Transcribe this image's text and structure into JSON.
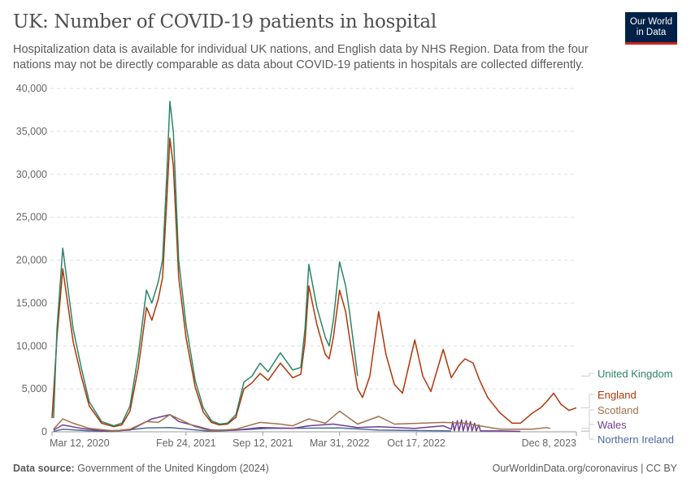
{
  "header": {
    "title": "UK: Number of COVID-19 patients in hospital",
    "subtitle": "Hospitalization data is available for individual UK nations, and English data by NHS Region. Data from the four nations may not be directly comparable as data about COVID-19 patients in hospitals are collected differently.",
    "logo": [
      "Our World",
      "in Data"
    ]
  },
  "footer": {
    "source_label": "Data source:",
    "source": " Government of the United Kingdom (2024)",
    "right": "OurWorldinData.org/coronavirus | CC BY"
  },
  "chart_data": {
    "type": "line",
    "title": "UK: Number of COVID-19 patients in hospital",
    "ylim": [
      0,
      40000
    ],
    "yticks": [
      "0",
      "5,000",
      "10,000",
      "15,000",
      "20,000",
      "25,000",
      "30,000",
      "35,000",
      "40,000"
    ],
    "ytick_values": [
      0,
      5000,
      10000,
      15000,
      20000,
      25000,
      30000,
      35000,
      40000
    ],
    "xlim": [
      "2020-03-12",
      "2023-12-08"
    ],
    "xticks": [
      {
        "date": "2020-03-12",
        "label": "Mar 12, 2020"
      },
      {
        "date": "2021-02-24",
        "label": "Feb 24, 2021"
      },
      {
        "date": "2021-09-12",
        "label": "Sep 12, 2021"
      },
      {
        "date": "2022-03-31",
        "label": "Mar 31, 2022"
      },
      {
        "date": "2022-10-17",
        "label": "Oct 17, 2022"
      },
      {
        "date": "2023-12-08",
        "label": "Dec 8, 2023"
      }
    ],
    "grid": true,
    "legend_placement": "right",
    "series": [
      {
        "name": "United Kingdom",
        "color": "#2c8465",
        "points": [
          [
            "2020-03-16",
            1600
          ],
          [
            "2020-03-25",
            12000
          ],
          [
            "2020-04-09",
            21400
          ],
          [
            "2020-05-06",
            12000
          ],
          [
            "2020-05-27",
            7500
          ],
          [
            "2020-06-17",
            3500
          ],
          [
            "2020-07-19",
            1200
          ],
          [
            "2020-08-20",
            700
          ],
          [
            "2020-09-10",
            1000
          ],
          [
            "2020-10-01",
            3000
          ],
          [
            "2020-10-23",
            9000
          ],
          [
            "2020-11-13",
            16500
          ],
          [
            "2020-11-27",
            15000
          ],
          [
            "2020-12-14",
            17500
          ],
          [
            "2020-12-25",
            20000
          ],
          [
            "2021-01-05",
            30000
          ],
          [
            "2021-01-13",
            38500
          ],
          [
            "2021-01-22",
            35000
          ],
          [
            "2021-02-05",
            20000
          ],
          [
            "2021-02-24",
            12500
          ],
          [
            "2021-03-20",
            6000
          ],
          [
            "2021-04-10",
            2800
          ],
          [
            "2021-05-01",
            1300
          ],
          [
            "2021-05-22",
            900
          ],
          [
            "2021-06-12",
            1000
          ],
          [
            "2021-07-04",
            2000
          ],
          [
            "2021-07-25",
            5800
          ],
          [
            "2021-08-15",
            6500
          ],
          [
            "2021-09-05",
            8000
          ],
          [
            "2021-09-26",
            7000
          ],
          [
            "2021-10-28",
            9200
          ],
          [
            "2021-11-29",
            7200
          ],
          [
            "2021-12-20",
            7500
          ],
          [
            "2021-12-31",
            12000
          ],
          [
            "2022-01-10",
            19500
          ],
          [
            "2022-01-31",
            14500
          ],
          [
            "2022-02-22",
            11000
          ],
          [
            "2022-03-04",
            10000
          ],
          [
            "2022-03-15",
            13000
          ],
          [
            "2022-03-31",
            19800
          ],
          [
            "2022-04-16",
            17000
          ],
          [
            "2022-04-26",
            14000
          ],
          [
            "2022-05-17",
            6500
          ]
        ]
      },
      {
        "name": "England",
        "color": "#b13507",
        "points": [
          [
            "2020-03-12",
            1600
          ],
          [
            "2020-03-25",
            11000
          ],
          [
            "2020-04-09",
            19000
          ],
          [
            "2020-05-06",
            10500
          ],
          [
            "2020-05-27",
            6500
          ],
          [
            "2020-06-17",
            3000
          ],
          [
            "2020-07-19",
            1000
          ],
          [
            "2020-08-20",
            600
          ],
          [
            "2020-09-10",
            800
          ],
          [
            "2020-10-01",
            2400
          ],
          [
            "2020-10-23",
            7500
          ],
          [
            "2020-11-13",
            14500
          ],
          [
            "2020-11-27",
            13000
          ],
          [
            "2020-12-14",
            15500
          ],
          [
            "2020-12-25",
            18000
          ],
          [
            "2021-01-05",
            27000
          ],
          [
            "2021-01-13",
            34200
          ],
          [
            "2021-01-22",
            31000
          ],
          [
            "2021-02-05",
            18000
          ],
          [
            "2021-02-24",
            11000
          ],
          [
            "2021-03-20",
            5200
          ],
          [
            "2021-04-10",
            2300
          ],
          [
            "2021-05-01",
            1100
          ],
          [
            "2021-05-22",
            800
          ],
          [
            "2021-06-12",
            900
          ],
          [
            "2021-07-04",
            1700
          ],
          [
            "2021-07-25",
            5000
          ],
          [
            "2021-08-15",
            5700
          ],
          [
            "2021-09-05",
            6800
          ],
          [
            "2021-09-26",
            6000
          ],
          [
            "2021-10-28",
            8000
          ],
          [
            "2021-11-29",
            6300
          ],
          [
            "2021-12-20",
            6700
          ],
          [
            "2021-12-31",
            10500
          ],
          [
            "2022-01-10",
            17000
          ],
          [
            "2022-01-31",
            12500
          ],
          [
            "2022-02-22",
            9000
          ],
          [
            "2022-03-04",
            8500
          ],
          [
            "2022-03-15",
            11000
          ],
          [
            "2022-03-31",
            16500
          ],
          [
            "2022-04-16",
            14000
          ],
          [
            "2022-04-26",
            11000
          ],
          [
            "2022-05-17",
            5000
          ],
          [
            "2022-05-30",
            4000
          ],
          [
            "2022-06-18",
            6500
          ],
          [
            "2022-07-11",
            14000
          ],
          [
            "2022-07-30",
            9000
          ],
          [
            "2022-08-21",
            5500
          ],
          [
            "2022-09-11",
            4500
          ],
          [
            "2022-10-13",
            10700
          ],
          [
            "2022-11-03",
            6500
          ],
          [
            "2022-11-24",
            4700
          ],
          [
            "2022-12-26",
            9600
          ],
          [
            "2023-01-16",
            6300
          ],
          [
            "2023-02-06",
            7800
          ],
          [
            "2023-02-21",
            8500
          ],
          [
            "2023-03-14",
            8000
          ],
          [
            "2023-03-31",
            6000
          ],
          [
            "2023-04-21",
            4000
          ],
          [
            "2023-05-23",
            2200
          ],
          [
            "2023-06-24",
            1000
          ],
          [
            "2023-07-15",
            1000
          ],
          [
            "2023-08-16",
            2200
          ],
          [
            "2023-09-06",
            2800
          ],
          [
            "2023-09-21",
            3500
          ],
          [
            "2023-10-10",
            4500
          ],
          [
            "2023-10-29",
            3200
          ],
          [
            "2023-11-19",
            2500
          ],
          [
            "2023-12-08",
            2800
          ]
        ]
      },
      {
        "name": "Scotland",
        "color": "#a2714a",
        "points": [
          [
            "2020-03-16",
            300
          ],
          [
            "2020-04-09",
            1500
          ],
          [
            "2020-05-06",
            1000
          ],
          [
            "2020-06-17",
            400
          ],
          [
            "2020-08-20",
            100
          ],
          [
            "2020-10-01",
            300
          ],
          [
            "2020-11-13",
            1200
          ],
          [
            "2020-12-14",
            1100
          ],
          [
            "2021-01-13",
            2000
          ],
          [
            "2021-02-05",
            1500
          ],
          [
            "2021-03-20",
            600
          ],
          [
            "2021-05-01",
            100
          ],
          [
            "2021-07-04",
            300
          ],
          [
            "2021-09-05",
            1100
          ],
          [
            "2021-10-28",
            900
          ],
          [
            "2021-11-29",
            700
          ],
          [
            "2022-01-10",
            1500
          ],
          [
            "2022-02-22",
            1000
          ],
          [
            "2022-03-31",
            2400
          ],
          [
            "2022-05-17",
            900
          ],
          [
            "2022-07-11",
            1800
          ],
          [
            "2022-08-21",
            900
          ],
          [
            "2022-12-26",
            1100
          ],
          [
            "2023-02-21",
            1000
          ],
          [
            "2023-03-31",
            700
          ],
          [
            "2023-05-23",
            300
          ],
          [
            "2023-08-16",
            300
          ],
          [
            "2023-09-21",
            500
          ],
          [
            "2023-10-01",
            400
          ]
        ]
      },
      {
        "name": "Wales",
        "color": "#6d3e91",
        "points": [
          [
            "2020-03-16",
            200
          ],
          [
            "2020-04-09",
            800
          ],
          [
            "2020-05-27",
            400
          ],
          [
            "2020-07-19",
            100
          ],
          [
            "2020-10-01",
            200
          ],
          [
            "2020-11-27",
            1500
          ],
          [
            "2021-01-13",
            2000
          ],
          [
            "2021-02-05",
            1200
          ],
          [
            "2021-05-01",
            200
          ],
          [
            "2021-07-04",
            200
          ],
          [
            "2021-09-05",
            500
          ],
          [
            "2021-11-29",
            400
          ],
          [
            "2022-01-10",
            700
          ],
          [
            "2022-03-15",
            900
          ],
          [
            "2022-05-17",
            500
          ],
          [
            "2022-07-11",
            600
          ],
          [
            "2022-10-13",
            400
          ],
          [
            "2022-12-26",
            700
          ],
          [
            "2023-01-16",
            300
          ],
          [
            "2023-01-20",
            1200
          ],
          [
            "2023-01-24",
            100
          ],
          [
            "2023-02-01",
            1300
          ],
          [
            "2023-02-05",
            100
          ],
          [
            "2023-02-12",
            1400
          ],
          [
            "2023-02-16",
            100
          ],
          [
            "2023-02-24",
            1300
          ],
          [
            "2023-02-28",
            100
          ],
          [
            "2023-03-07",
            1200
          ],
          [
            "2023-03-11",
            100
          ],
          [
            "2023-03-18",
            1000
          ],
          [
            "2023-03-22",
            100
          ],
          [
            "2023-03-29",
            800
          ],
          [
            "2023-04-02",
            100
          ],
          [
            "2023-05-23",
            100
          ],
          [
            "2023-07-15",
            50
          ]
        ]
      },
      {
        "name": "Northern Ireland",
        "color": "#4c6a9c",
        "points": [
          [
            "2020-03-16",
            50
          ],
          [
            "2020-04-09",
            300
          ],
          [
            "2020-06-17",
            100
          ],
          [
            "2020-08-20",
            50
          ],
          [
            "2020-11-13",
            450
          ],
          [
            "2021-01-13",
            500
          ],
          [
            "2021-05-01",
            50
          ],
          [
            "2021-09-26",
            400
          ],
          [
            "2022-03-31",
            450
          ],
          [
            "2022-07-11",
            200
          ],
          [
            "2023-01-16",
            100
          ]
        ]
      }
    ]
  }
}
